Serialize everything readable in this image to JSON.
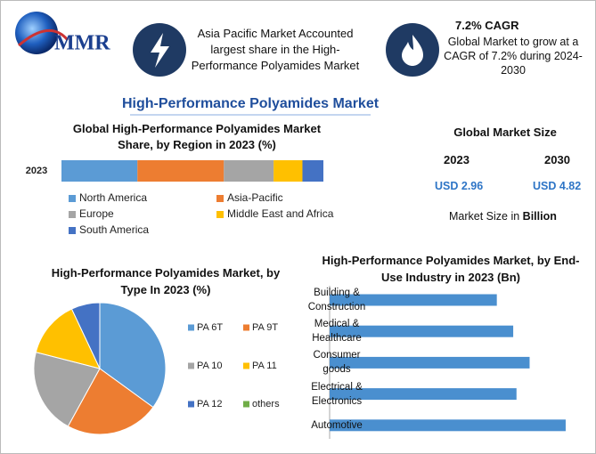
{
  "header": {
    "logo": "MMR",
    "highlight_1": "Asia Pacific Market Accounted largest share in the High-Performance Polyamides Market",
    "highlight_2_title": "7.2% CAGR",
    "highlight_2": "Global Market to grow at a CAGR of 7.2% during 2024-2030"
  },
  "title": "High-Performance Polyamides Market",
  "market_size": {
    "title": "Global Market Size",
    "years": [
      "2023",
      "2030"
    ],
    "values": [
      "USD 2.96",
      "USD 4.82"
    ],
    "note": "Market Size in ",
    "note_bold": "Billion"
  },
  "chart_data": [
    {
      "type": "stacked_bar",
      "title": "Global High-Performance Polyamides Market Share, by Region in 2023 (%)",
      "categories": [
        "2023"
      ],
      "series": [
        {
          "name": "North America",
          "color": "#5b9bd5",
          "values": [
            29
          ]
        },
        {
          "name": "Asia-Pacific",
          "color": "#ed7d31",
          "values": [
            33
          ]
        },
        {
          "name": "Europe",
          "color": "#a5a5a5",
          "values": [
            19
          ]
        },
        {
          "name": "Middle East and Africa",
          "color": "#ffc000",
          "values": [
            11
          ]
        },
        {
          "name": "South America",
          "color": "#4472c4",
          "values": [
            8
          ]
        }
      ]
    },
    {
      "type": "pie",
      "title": "High-Performance Polyamides Market, by Type In 2023 (%)",
      "categories": [
        "PA 6T",
        "PA 9T",
        "PA 10",
        "PA 11",
        "PA 12",
        "others"
      ],
      "values": [
        35,
        23,
        21,
        14,
        7,
        0
      ],
      "colors": [
        "#5b9bd5",
        "#ed7d31",
        "#a5a5a5",
        "#ffc000",
        "#4472c4",
        "#70ad47"
      ]
    },
    {
      "type": "hbar",
      "title": "High-Performance Polyamides Market, by End-Use Industry in 2023 (Bn)",
      "categories": [
        "Building &\nConstruction",
        "Medical &\nHealthcare",
        "Consumer\ngoods",
        "Electrical &\nElectronics",
        "Automotive"
      ],
      "values": [
        0.51,
        0.56,
        0.61,
        0.57,
        0.72
      ],
      "color": "#4a8fcf"
    }
  ]
}
